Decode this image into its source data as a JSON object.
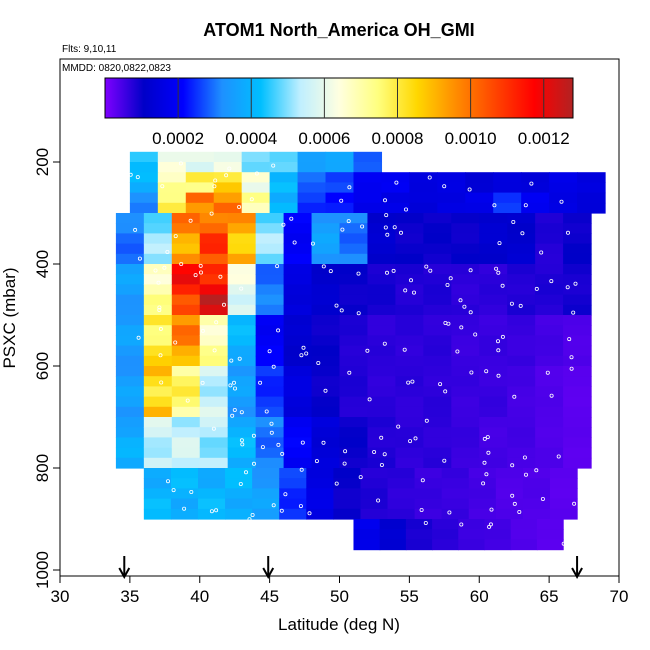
{
  "chart_data": {
    "type": "heatmap",
    "title": "ATOM1 North_America OH_GMI",
    "subtitle_line1": "Flts: 9,10,11",
    "subtitle_line2": "MMDD: 0820,0822,0823",
    "xlabel": "Latitude (deg N)",
    "ylabel": "PSXC (mbar)",
    "xlim": [
      30,
      70
    ],
    "ylim": [
      1000,
      0
    ],
    "x_ticks": [
      "30",
      "35",
      "40",
      "45",
      "50",
      "55",
      "60",
      "65",
      "70"
    ],
    "y_ticks": [
      "200",
      "400",
      "600",
      "800",
      "1000"
    ],
    "colorbar": {
      "range": [
        0,
        0.00128
      ],
      "ticks": [
        "0.0002",
        "0.0004",
        "0.0006",
        "0.0008",
        "0.0010",
        "0.0012"
      ],
      "stops": [
        "#7f00ff",
        "#0000c8",
        "#0000ff",
        "#1e90ff",
        "#00bfff",
        "#bfefff",
        "#ffffe0",
        "#ffff7f",
        "#ffd700",
        "#ff8c00",
        "#ff4500",
        "#ff0000",
        "#b22222"
      ]
    },
    "arrow_latitudes": [
      34.6,
      44.9,
      67.0
    ],
    "series": [
      {
        "band": "180-220 mbar",
        "lat_range": [
          35,
          53
        ],
        "values": [
          0.00045,
          0.0006,
          0.00062,
          0.00058,
          0.00052,
          0.00045,
          0.00038,
          0.00035,
          0.0003
        ]
      },
      {
        "band": "220-260 mbar",
        "lat_range": [
          35,
          69
        ],
        "values": [
          0.0004,
          0.0007,
          0.00078,
          0.00082,
          0.00065,
          0.0004,
          0.0003,
          0.00025,
          0.0002,
          0.00018,
          0.00016,
          0.00015,
          0.00014,
          0.00014,
          0.00015,
          0.00016,
          0.00016
        ]
      },
      {
        "band": "260-300 mbar",
        "lat_range": [
          35,
          69
        ],
        "values": [
          0.0003,
          0.0008,
          0.00095,
          0.001,
          0.0007,
          0.0004,
          0.00025,
          0.00022,
          0.00018,
          0.00016,
          0.00015,
          0.00015,
          0.00018,
          0.00024,
          0.0002,
          0.00015,
          0.00015
        ]
      },
      {
        "band": "300-400 mbar",
        "lat_range": [
          34,
          68
        ],
        "values": [
          0.0003,
          0.0005,
          0.00095,
          0.00105,
          0.0009,
          0.0005,
          0.0002,
          0.00035,
          0.0003,
          0.00012,
          0.0001,
          0.0001,
          0.0001,
          0.00012,
          0.00012,
          8e-05,
          0.0001
        ]
      },
      {
        "band": "400-500 mbar",
        "lat_range": [
          34,
          68
        ],
        "values": [
          0.00035,
          0.0007,
          0.00112,
          0.00118,
          0.0006,
          0.0003,
          0.00015,
          0.00012,
          0.0001,
          9e-05,
          8e-05,
          8e-05,
          7e-05,
          7e-05,
          8e-05,
          8e-05,
          9e-05
        ]
      },
      {
        "band": "500-600 mbar",
        "lat_range": [
          34,
          68
        ],
        "values": [
          0.00035,
          0.0008,
          0.00095,
          0.0007,
          0.0004,
          0.0002,
          0.00012,
          0.0001,
          8e-05,
          7e-05,
          7e-05,
          7e-05,
          6e-05,
          6e-05,
          6e-05,
          5e-05,
          4e-05
        ]
      },
      {
        "band": "600-700 mbar",
        "lat_range": [
          34,
          68
        ],
        "values": [
          0.00035,
          0.00085,
          0.00075,
          0.00055,
          0.00035,
          0.00025,
          0.00015,
          0.0001,
          8e-05,
          7e-05,
          7e-05,
          7e-05,
          6e-05,
          6e-05,
          5e-05,
          4e-05,
          3e-05
        ]
      },
      {
        "band": "700-800 mbar",
        "lat_range": [
          34,
          68
        ],
        "values": [
          0.00038,
          0.00055,
          0.00055,
          0.00052,
          0.0004,
          0.0003,
          0.0002,
          0.00014,
          0.0001,
          8e-05,
          7e-05,
          7e-05,
          6e-05,
          5e-05,
          5e-05,
          4e-05,
          3e-05
        ]
      },
      {
        "band": "800-900 mbar",
        "lat_range": [
          36,
          67
        ],
        "values": [
          0.0004,
          0.0004,
          0.0004,
          0.0004,
          0.00035,
          0.00025,
          0.00016,
          0.0001,
          8e-05,
          7e-05,
          6e-05,
          6e-05,
          5e-05,
          4e-05,
          4e-05,
          3e-05
        ]
      },
      {
        "band": "900-960 mbar",
        "lat_range": [
          51,
          66
        ],
        "values": [
          0.00018,
          0.00012,
          9e-05,
          7e-05,
          6e-05,
          5e-05,
          4e-05,
          3e-05
        ]
      }
    ]
  }
}
